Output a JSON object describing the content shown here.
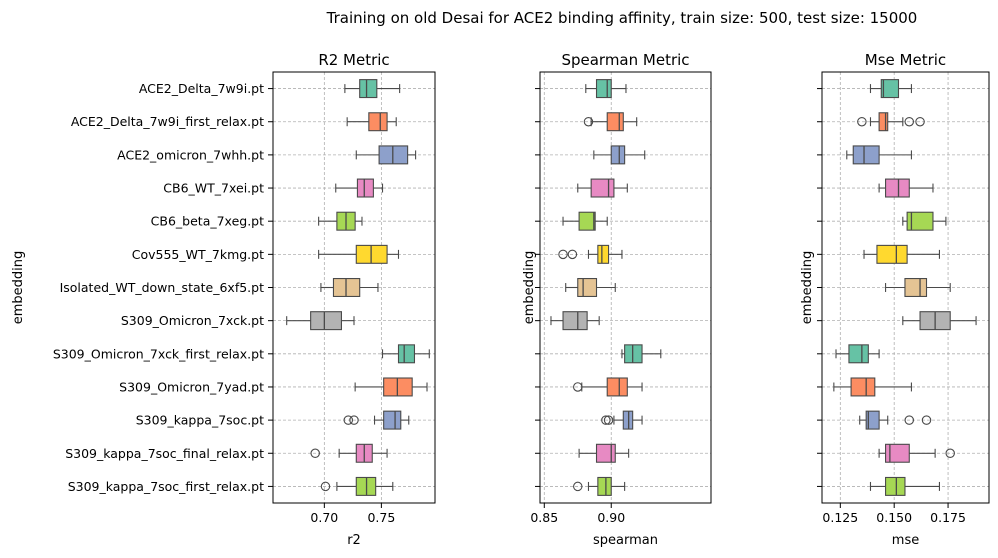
{
  "suptitle": "Training on old Desai for ACE2 binding affinity, train size: 500, test size: 15000",
  "ylabel": "embedding",
  "colors": [
    "#66c2a5",
    "#fc8d62",
    "#8da0cb",
    "#e78ac3",
    "#a6d854",
    "#ffd92f",
    "#e5c494",
    "#b3b3b3",
    "#66c2a5",
    "#fc8d62",
    "#8da0cb",
    "#e78ac3",
    "#a6d854"
  ],
  "chart_data": [
    {
      "type": "boxplot",
      "title": "R2 Metric",
      "xlabel": "r2",
      "ylabel": "embedding",
      "xlim": [
        0.655,
        0.797
      ],
      "xticks": [
        0.7,
        0.75
      ],
      "xticklabels": [
        "0.70",
        "0.75"
      ],
      "grid": true,
      "categories": [
        "ACE2_Delta_7w9i.pt",
        "ACE2_Delta_7w9i_first_relax.pt",
        "ACE2_omicron_7whh.pt",
        "CB6_WT_7xei.pt",
        "CB6_beta_7xeg.pt",
        "Cov555_WT_7kmg.pt",
        "Isolated_WT_down_state_6xf5.pt",
        "S309_Omicron_7xck.pt",
        "S309_Omicron_7xck_first_relax.pt",
        "S309_Omicron_7yad.pt",
        "S309_kappa_7soc.pt",
        "S309_kappa_7soc_final_relax.pt",
        "S309_kappa_7soc_first_relax.pt"
      ],
      "boxes": [
        {
          "whislo": 0.718,
          "q1": 0.731,
          "med": 0.737,
          "q3": 0.746,
          "whishi": 0.766,
          "outliers": []
        },
        {
          "whislo": 0.72,
          "q1": 0.739,
          "med": 0.749,
          "q3": 0.755,
          "whishi": 0.763,
          "outliers": []
        },
        {
          "whislo": 0.728,
          "q1": 0.748,
          "med": 0.76,
          "q3": 0.773,
          "whishi": 0.78,
          "outliers": []
        },
        {
          "whislo": 0.71,
          "q1": 0.729,
          "med": 0.735,
          "q3": 0.743,
          "whishi": 0.751,
          "outliers": []
        },
        {
          "whislo": 0.695,
          "q1": 0.711,
          "med": 0.719,
          "q3": 0.727,
          "whishi": 0.733,
          "outliers": []
        },
        {
          "whislo": 0.695,
          "q1": 0.728,
          "med": 0.741,
          "q3": 0.755,
          "whishi": 0.765,
          "outliers": []
        },
        {
          "whislo": 0.697,
          "q1": 0.708,
          "med": 0.719,
          "q3": 0.731,
          "whishi": 0.747,
          "outliers": []
        },
        {
          "whislo": 0.667,
          "q1": 0.688,
          "med": 0.7,
          "q3": 0.715,
          "whishi": 0.726,
          "outliers": []
        },
        {
          "whislo": 0.751,
          "q1": 0.765,
          "med": 0.77,
          "q3": 0.779,
          "whishi": 0.792,
          "outliers": []
        },
        {
          "whislo": 0.727,
          "q1": 0.752,
          "med": 0.764,
          "q3": 0.777,
          "whishi": 0.79,
          "outliers": []
        },
        {
          "whislo": 0.744,
          "q1": 0.752,
          "med": 0.762,
          "q3": 0.767,
          "whishi": 0.774,
          "outliers": [
            0.721,
            0.726
          ]
        },
        {
          "whislo": 0.713,
          "q1": 0.728,
          "med": 0.735,
          "q3": 0.742,
          "whishi": 0.755,
          "outliers": [
            0.692
          ]
        },
        {
          "whislo": 0.711,
          "q1": 0.728,
          "med": 0.737,
          "q3": 0.745,
          "whishi": 0.76,
          "outliers": [
            0.701
          ]
        }
      ]
    },
    {
      "type": "boxplot",
      "title": "Spearman Metric",
      "xlabel": "spearman",
      "ylabel": "embedding",
      "xlim": [
        0.8468,
        0.9745
      ],
      "xticks": [
        0.85,
        0.9
      ],
      "xticklabels": [
        "0.85",
        "0.90"
      ],
      "grid": true,
      "categories": [
        "ACE2_Delta_7w9i.pt",
        "ACE2_Delta_7w9i_first_relax.pt",
        "ACE2_omicron_7whh.pt",
        "CB6_WT_7xei.pt",
        "CB6_beta_7xeg.pt",
        "Cov555_WT_7kmg.pt",
        "Isolated_WT_down_state_6xf5.pt",
        "S309_Omicron_7xck.pt",
        "S309_Omicron_7xck_first_relax.pt",
        "S309_Omicron_7yad.pt",
        "S309_kappa_7soc.pt",
        "S309_kappa_7soc_final_relax.pt",
        "S309_kappa_7soc_first_relax.pt"
      ],
      "boxes": [
        {
          "whislo": 0.881,
          "q1": 0.889,
          "med": 0.897,
          "q3": 0.9,
          "whishi": 0.911,
          "outliers": []
        },
        {
          "whislo": 0.885,
          "q1": 0.897,
          "med": 0.906,
          "q3": 0.909,
          "whishi": 0.919,
          "outliers": [
            0.883
          ]
        },
        {
          "whislo": 0.887,
          "q1": 0.9,
          "med": 0.906,
          "q3": 0.91,
          "whishi": 0.925,
          "outliers": []
        },
        {
          "whislo": 0.875,
          "q1": 0.885,
          "med": 0.898,
          "q3": 0.902,
          "whishi": 0.912,
          "outliers": []
        },
        {
          "whislo": 0.864,
          "q1": 0.876,
          "med": 0.887,
          "q3": 0.888,
          "whishi": 0.897,
          "outliers": []
        },
        {
          "whislo": 0.883,
          "q1": 0.89,
          "med": 0.893,
          "q3": 0.898,
          "whishi": 0.908,
          "outliers": [
            0.864,
            0.871
          ]
        },
        {
          "whislo": 0.866,
          "q1": 0.875,
          "med": 0.879,
          "q3": 0.889,
          "whishi": 0.903,
          "outliers": []
        },
        {
          "whislo": 0.855,
          "q1": 0.864,
          "med": 0.875,
          "q3": 0.882,
          "whishi": 0.891,
          "outliers": []
        },
        {
          "whislo": 0.908,
          "q1": 0.91,
          "med": 0.916,
          "q3": 0.923,
          "whishi": 0.937,
          "outliers": []
        },
        {
          "whislo": 0.878,
          "q1": 0.897,
          "med": 0.906,
          "q3": 0.912,
          "whishi": 0.923,
          "outliers": [
            0.875
          ]
        },
        {
          "whislo": 0.902,
          "q1": 0.909,
          "med": 0.913,
          "q3": 0.916,
          "whishi": 0.923,
          "outliers": [
            0.896,
            0.898
          ]
        },
        {
          "whislo": 0.876,
          "q1": 0.889,
          "med": 0.9,
          "q3": 0.903,
          "whishi": 0.913,
          "outliers": []
        },
        {
          "whislo": 0.883,
          "q1": 0.89,
          "med": 0.896,
          "q3": 0.9,
          "whishi": 0.91,
          "outliers": [
            0.875
          ]
        }
      ]
    },
    {
      "type": "boxplot",
      "title": "Mse Metric",
      "xlabel": "mse",
      "ylabel": "embedding",
      "xlim": [
        0.1165,
        0.194
      ],
      "xticks": [
        0.125,
        0.15,
        0.175
      ],
      "xticklabels": [
        "0.125",
        "0.150",
        "0.175"
      ],
      "grid": true,
      "categories": [
        "ACE2_Delta_7w9i.pt",
        "ACE2_Delta_7w9i_first_relax.pt",
        "ACE2_omicron_7whh.pt",
        "CB6_WT_7xei.pt",
        "CB6_beta_7xeg.pt",
        "Cov555_WT_7kmg.pt",
        "Isolated_WT_down_state_6xf5.pt",
        "S309_Omicron_7xck.pt",
        "S309_Omicron_7xck_first_relax.pt",
        "S309_Omicron_7yad.pt",
        "S309_kappa_7soc.pt",
        "S309_kappa_7soc_final_relax.pt",
        "S309_kappa_7soc_first_relax.pt"
      ],
      "boxes": [
        {
          "whislo": 0.139,
          "q1": 0.144,
          "med": 0.145,
          "q3": 0.152,
          "whishi": 0.158,
          "outliers": []
        },
        {
          "whislo": 0.139,
          "q1": 0.143,
          "med": 0.146,
          "q3": 0.147,
          "whishi": 0.154,
          "outliers": [
            0.135,
            0.157,
            0.162
          ]
        },
        {
          "whislo": 0.128,
          "q1": 0.131,
          "med": 0.136,
          "q3": 0.143,
          "whishi": 0.158,
          "outliers": []
        },
        {
          "whislo": 0.143,
          "q1": 0.146,
          "med": 0.152,
          "q3": 0.157,
          "whishi": 0.168,
          "outliers": []
        },
        {
          "whislo": 0.154,
          "q1": 0.156,
          "med": 0.158,
          "q3": 0.168,
          "whishi": 0.174,
          "outliers": []
        },
        {
          "whislo": 0.136,
          "q1": 0.142,
          "med": 0.151,
          "q3": 0.156,
          "whishi": 0.171,
          "outliers": []
        },
        {
          "whislo": 0.146,
          "q1": 0.155,
          "med": 0.162,
          "q3": 0.165,
          "whishi": 0.176,
          "outliers": []
        },
        {
          "whislo": 0.154,
          "q1": 0.162,
          "med": 0.169,
          "q3": 0.176,
          "whishi": 0.188,
          "outliers": []
        },
        {
          "whislo": 0.123,
          "q1": 0.129,
          "med": 0.135,
          "q3": 0.138,
          "whishi": 0.143,
          "outliers": []
        },
        {
          "whislo": 0.122,
          "q1": 0.13,
          "med": 0.137,
          "q3": 0.141,
          "whishi": 0.158,
          "outliers": []
        },
        {
          "whislo": 0.134,
          "q1": 0.137,
          "med": 0.138,
          "q3": 0.143,
          "whishi": 0.147,
          "outliers": [
            0.157,
            0.165
          ]
        },
        {
          "whislo": 0.143,
          "q1": 0.146,
          "med": 0.148,
          "q3": 0.157,
          "whishi": 0.169,
          "outliers": [
            0.176
          ]
        },
        {
          "whislo": 0.139,
          "q1": 0.146,
          "med": 0.151,
          "q3": 0.155,
          "whishi": 0.171,
          "outliers": []
        }
      ]
    }
  ]
}
